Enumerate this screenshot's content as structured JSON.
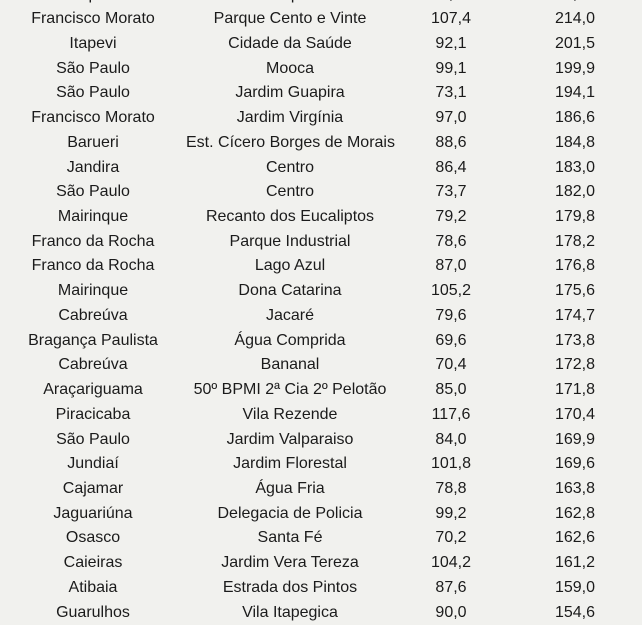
{
  "style": {
    "background_color": "#f1f1ee",
    "text_color": "#1b1b1b"
  },
  "chart_data": {
    "type": "table",
    "header_visible": false,
    "note_layout": "cropped table view; first and last rows cut off by image edges",
    "columns_semantic": [
      "city",
      "district_or_place",
      "value_1",
      "value_2"
    ],
    "top_row_cut_off_fragments": [
      "p",
      "q",
      ",",
      ","
    ],
    "rows": [
      [
        "Francisco Morato",
        "Parque Cento e Vinte",
        "107,4",
        "214,0"
      ],
      [
        "Itapevi",
        "Cidade da Saúde",
        "92,1",
        "201,5"
      ],
      [
        "São Paulo",
        "Mooca",
        "99,1",
        "199,9"
      ],
      [
        "São Paulo",
        "Jardim Guapira",
        "73,1",
        "194,1"
      ],
      [
        "Francisco Morato",
        "Jardim Virgínia",
        "97,0",
        "186,6"
      ],
      [
        "Barueri",
        "Est. Cícero Borges de Morais",
        "88,6",
        "184,8"
      ],
      [
        "Jandira",
        "Centro",
        "86,4",
        "183,0"
      ],
      [
        "São Paulo",
        "Centro",
        "73,7",
        "182,0"
      ],
      [
        "Mairinque",
        "Recanto dos Eucaliptos",
        "79,2",
        "179,8"
      ],
      [
        "Franco da Rocha",
        "Parque Industrial",
        "78,6",
        "178,2"
      ],
      [
        "Franco da Rocha",
        "Lago Azul",
        "87,0",
        "176,8"
      ],
      [
        "Mairinque",
        "Dona Catarina",
        "105,2",
        "175,6"
      ],
      [
        "Cabreúva",
        "Jacaré",
        "79,6",
        "174,7"
      ],
      [
        "Bragança Paulista",
        "Água Comprida",
        "69,6",
        "173,8"
      ],
      [
        "Cabreúva",
        "Bananal",
        "70,4",
        "172,8"
      ],
      [
        "Araçariguama",
        "50º BPMI 2ª Cia 2º Pelotão",
        "85,0",
        "171,8"
      ],
      [
        "Piracicaba",
        "Vila Rezende",
        "117,6",
        "170,4"
      ],
      [
        "São Paulo",
        "Jardim Valparaiso",
        "84,0",
        "169,9"
      ],
      [
        "Jundiaí",
        "Jardim Florestal",
        "101,8",
        "169,6"
      ],
      [
        "Cajamar",
        "Água Fria",
        "78,8",
        "163,8"
      ],
      [
        "Jaguariúna",
        "Delegacia de Policia",
        "99,2",
        "162,8"
      ],
      [
        "Osasco",
        "Santa Fé",
        "70,2",
        "162,6"
      ],
      [
        "Caieiras",
        "Jardim Vera Tereza",
        "104,2",
        "161,2"
      ],
      [
        "Atibaia",
        "Estrada dos Pintos",
        "87,6",
        "159,0"
      ]
    ],
    "bottom_row_cut_off": [
      "Guarulhos",
      "Vila Itapegica",
      "90,0",
      "154,6"
    ]
  }
}
